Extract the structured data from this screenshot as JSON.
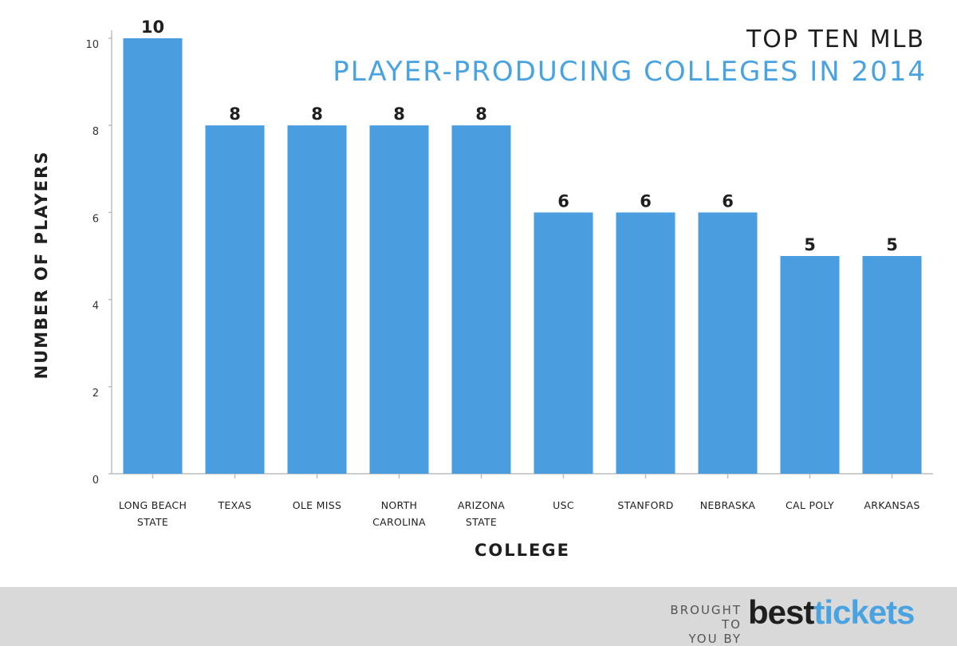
{
  "chart_data": {
    "type": "bar",
    "title_line1": "TOP TEN MLB",
    "title_line2": "PLAYER-PRODUCING COLLEGES IN 2014",
    "xlabel": "COLLEGE",
    "ylabel": "NUMBER OF PLAYERS",
    "categories": [
      [
        "LONG BEACH",
        "STATE"
      ],
      [
        "TEXAS"
      ],
      [
        "OLE MISS"
      ],
      [
        "NORTH",
        "CAROLINA"
      ],
      [
        "ARIZONA",
        "STATE"
      ],
      [
        "USC"
      ],
      [
        "STANFORD"
      ],
      [
        "NEBRASKA"
      ],
      [
        "CAL POLY"
      ],
      [
        "ARKANSAS"
      ]
    ],
    "values": [
      10,
      8,
      8,
      8,
      8,
      6,
      6,
      6,
      5,
      5
    ],
    "ylim": [
      0,
      10
    ],
    "yticks": [
      0,
      2,
      4,
      6,
      8,
      10
    ],
    "bar_color": "#4a9ddf",
    "data_labels": true,
    "grid": false
  },
  "footer": {
    "brought_line1": "BROUGHT TO",
    "brought_line2": "YOU BY",
    "logo_best": "best",
    "logo_tickets": "tickets"
  }
}
